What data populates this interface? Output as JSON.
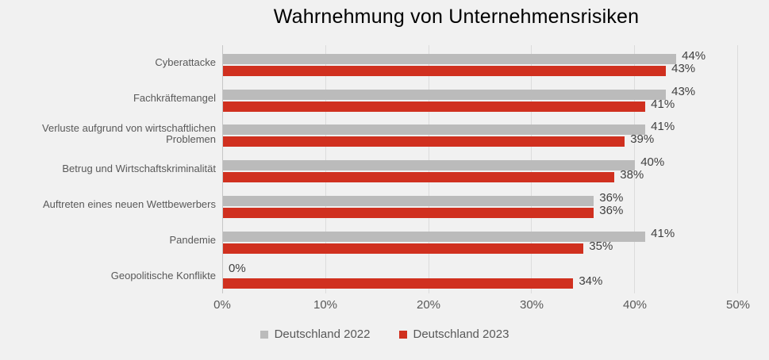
{
  "colors": {
    "background": "#F1F1F1",
    "bar_2022": "#BBBBBB",
    "bar_2023": "#D0301F",
    "gridline": "#DCDCDC",
    "axis_line": "#C6C6C6",
    "title_text": "#000000",
    "category_text": "#595959",
    "value_text": "#404040",
    "tick_text": "#595959",
    "legend_text": "#595959"
  },
  "chart_data": {
    "type": "bar",
    "orientation": "horizontal",
    "title": "Wahrnehmung von Unternehmensrisiken",
    "categories": [
      "Cyberattacke",
      "Fachkräftemangel",
      "Verluste aufgrund von wirtschaftlichen Problemen",
      "Betrug und Wirtschaftskriminalität",
      "Auftreten eines neuen Wettbewerbers",
      "Pandemie",
      "Geopolitische Konflikte"
    ],
    "series": [
      {
        "name": "Deutschland 2022",
        "color_key": "bar_2022",
        "values": [
          44,
          43,
          41,
          40,
          36,
          41,
          0
        ]
      },
      {
        "name": "Deutschland 2023",
        "color_key": "bar_2023",
        "values": [
          43,
          41,
          39,
          38,
          36,
          35,
          34
        ]
      }
    ],
    "value_suffix": "%",
    "data_labels": true,
    "x_ticks": [
      "0%",
      "10%",
      "20%",
      "30%",
      "40%",
      "50%"
    ],
    "xlim": [
      0,
      50
    ],
    "grid": true,
    "legend_position": "bottom"
  }
}
